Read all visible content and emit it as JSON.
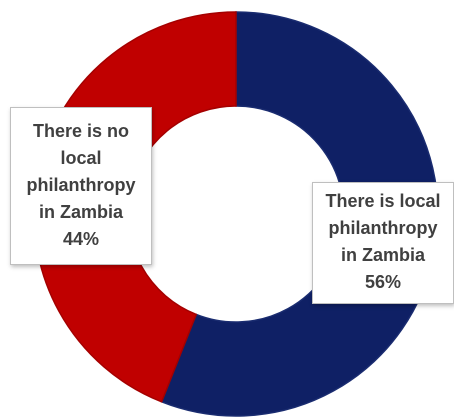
{
  "chart_data": {
    "type": "pie",
    "variant": "doughnut",
    "categories": [
      "There is local philanthropy in Zambia",
      "There is no local philanthropy in Zambia"
    ],
    "values": [
      56,
      44
    ],
    "colors": [
      "#0f2065",
      "#c00000"
    ],
    "title": "",
    "data_labels": [
      {
        "lines": [
          "There is local",
          "philanthropy",
          "in Zambia"
        ],
        "value": "56%"
      },
      {
        "lines": [
          "There is no",
          "local",
          "philanthropy",
          "in Zambia"
        ],
        "value": "44%"
      }
    ]
  }
}
